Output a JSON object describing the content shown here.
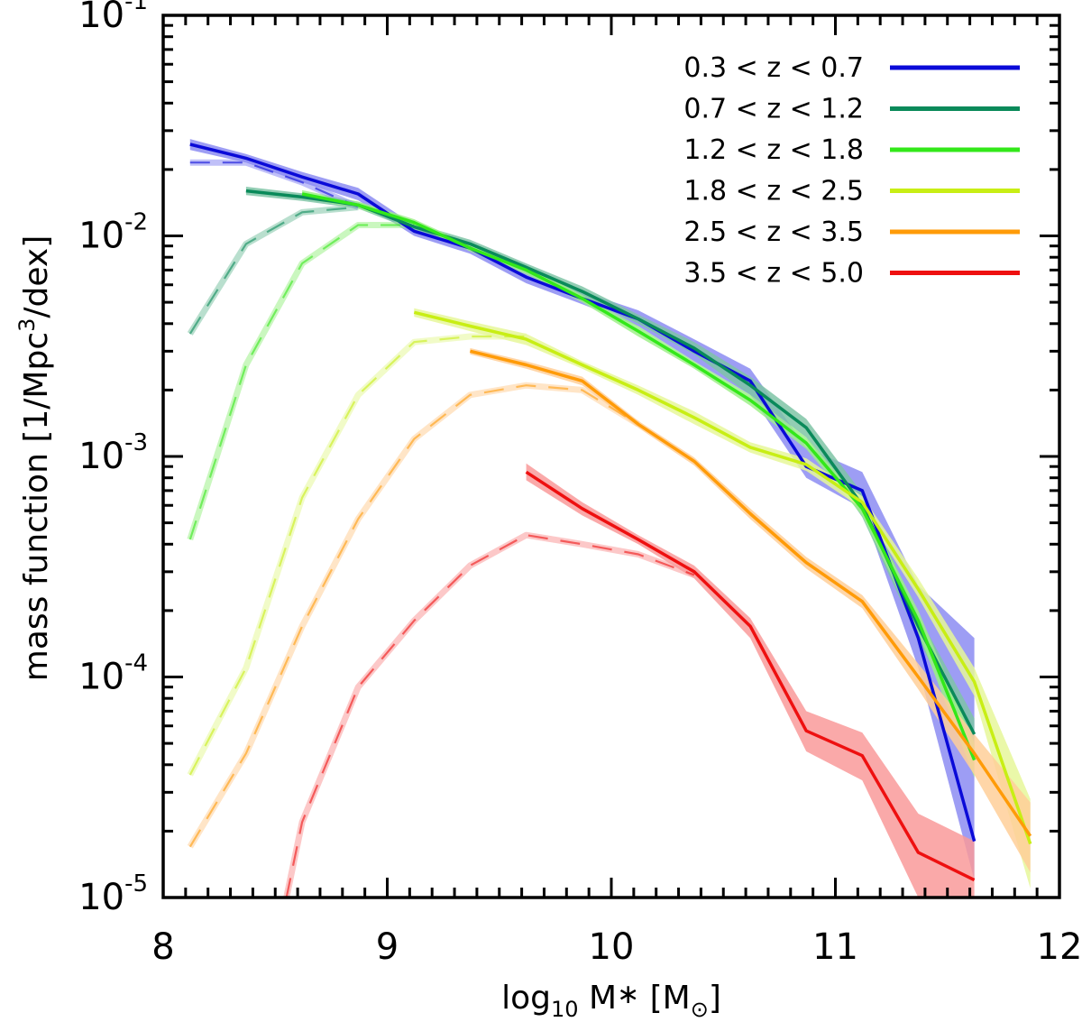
{
  "chart_data": {
    "type": "line",
    "xlabel_parts": {
      "base": "log",
      "sub": "10",
      "mid": " M",
      "star": "∗",
      "open": " [M",
      "sun": "⊙",
      "close": "]"
    },
    "ylabel_parts": {
      "pre": "mass function [1/Mpc",
      "sup": "3",
      "post": "/dex]"
    },
    "xlim": [
      8,
      12
    ],
    "ylim": [
      1e-05,
      0.1
    ],
    "y_scale": "log",
    "x_ticks": [
      {
        "value": 8,
        "label": "8"
      },
      {
        "value": 9,
        "label": "9"
      },
      {
        "value": 10,
        "label": "10"
      },
      {
        "value": 11,
        "label": "11"
      },
      {
        "value": 12,
        "label": "12"
      }
    ],
    "y_ticks": [
      {
        "value": 1e-05,
        "base": "10",
        "exp": "-5"
      },
      {
        "value": 0.0001,
        "base": "10",
        "exp": "-4"
      },
      {
        "value": 0.001,
        "base": "10",
        "exp": "-3"
      },
      {
        "value": 0.01,
        "base": "10",
        "exp": "-2"
      },
      {
        "value": 0.1,
        "base": "10",
        "exp": "-1"
      }
    ],
    "legend_placement": "top-right",
    "series": [
      {
        "name": "0.3 < z < 0.7",
        "color": "#0a0ad8",
        "band_color": "#8c8cf2",
        "x": [
          8.12,
          8.37,
          8.62,
          8.87,
          9.12,
          9.37,
          9.62,
          9.87,
          10.12,
          10.37,
          10.62,
          10.87,
          11.12,
          11.37,
          11.62
        ],
        "y": [
          0.026,
          0.0225,
          0.0185,
          0.0155,
          0.0105,
          0.0088,
          0.0065,
          0.0052,
          0.0042,
          0.003,
          0.0022,
          0.0009,
          0.0007,
          0.00015,
          1.8e-05
        ],
        "lo": [
          0.0245,
          0.0215,
          0.0175,
          0.0145,
          0.01,
          0.0083,
          0.0061,
          0.0049,
          0.0039,
          0.0027,
          0.0019,
          0.0008,
          0.00058,
          0.00011,
          1.2e-05
        ],
        "hi": [
          0.0275,
          0.0235,
          0.0195,
          0.0165,
          0.0112,
          0.0094,
          0.0069,
          0.0056,
          0.0046,
          0.0034,
          0.0025,
          0.0011,
          0.00085,
          0.00026,
          0.00015
        ],
        "incomplete": {
          "x": [
            8.12,
            8.37,
            8.62,
            8.87
          ],
          "y": [
            0.0215,
            0.0215,
            0.0175,
            0.0135
          ]
        }
      },
      {
        "name": "0.7 < z < 1.2",
        "color": "#0a8a5a",
        "band_color": "#7fc4a6",
        "x": [
          8.37,
          8.62,
          8.87,
          9.12,
          9.37,
          9.62,
          9.87,
          10.12,
          10.37,
          10.62,
          10.87,
          11.12,
          11.37,
          11.62
        ],
        "y": [
          0.016,
          0.015,
          0.0138,
          0.011,
          0.0092,
          0.0072,
          0.0056,
          0.0042,
          0.0031,
          0.0021,
          0.00135,
          0.0006,
          0.00017,
          5.5e-05
        ],
        "lo": [
          0.0153,
          0.0144,
          0.0133,
          0.0106,
          0.0088,
          0.0069,
          0.0053,
          0.004,
          0.0029,
          0.0019,
          0.00122,
          0.00053,
          0.00015,
          4.5e-05
        ],
        "hi": [
          0.0167,
          0.0156,
          0.0143,
          0.0114,
          0.0096,
          0.0075,
          0.0059,
          0.0044,
          0.0033,
          0.0023,
          0.00148,
          0.00068,
          0.00019,
          6.5e-05
        ],
        "incomplete": {
          "x": [
            8.12,
            8.37,
            8.62,
            8.87
          ],
          "y": [
            0.0036,
            0.0092,
            0.0128,
            0.0135
          ]
        }
      },
      {
        "name": "1.2 < z < 1.8",
        "color": "#33e81a",
        "band_color": "#9ff08a",
        "x": [
          8.62,
          8.87,
          9.12,
          9.37,
          9.62,
          9.87,
          10.12,
          10.37,
          10.62,
          10.87,
          11.12,
          11.37,
          11.62
        ],
        "y": [
          0.0155,
          0.0138,
          0.0115,
          0.0088,
          0.007,
          0.0052,
          0.0037,
          0.0026,
          0.0018,
          0.00115,
          0.00058,
          0.00018,
          4.2e-05
        ],
        "lo": [
          0.0149,
          0.0133,
          0.0111,
          0.0085,
          0.0067,
          0.005,
          0.0035,
          0.0025,
          0.0017,
          0.00108,
          0.00054,
          0.00016,
          3.5e-05
        ],
        "hi": [
          0.0161,
          0.0143,
          0.0119,
          0.0091,
          0.0073,
          0.0054,
          0.0039,
          0.0027,
          0.0019,
          0.00122,
          0.00062,
          0.0002,
          5e-05
        ],
        "incomplete": {
          "x": [
            8.12,
            8.37,
            8.62,
            8.87,
            9.12
          ],
          "y": [
            0.00042,
            0.0026,
            0.0075,
            0.0112,
            0.0112
          ]
        }
      },
      {
        "name": "1.8 < z < 2.5",
        "color": "#c8ee14",
        "band_color": "#e6f79a",
        "x": [
          9.12,
          9.37,
          9.62,
          9.87,
          10.12,
          10.37,
          10.62,
          10.87,
          11.12,
          11.37,
          11.62,
          11.87
        ],
        "y": [
          0.0045,
          0.0039,
          0.0034,
          0.0026,
          0.002,
          0.0015,
          0.0011,
          0.00092,
          0.00062,
          0.00025,
          9.5e-05,
          1.75e-05
        ],
        "lo": [
          0.0043,
          0.0037,
          0.0032,
          0.0025,
          0.0019,
          0.0014,
          0.00104,
          0.00086,
          0.00058,
          0.00023,
          8.2e-05,
          1.1e-05
        ],
        "hi": [
          0.0047,
          0.0041,
          0.0036,
          0.0027,
          0.0021,
          0.0016,
          0.00116,
          0.00098,
          0.00066,
          0.00028,
          0.00011,
          2.8e-05
        ],
        "incomplete": {
          "x": [
            8.12,
            8.37,
            8.62,
            8.87,
            9.12,
            9.37,
            9.62
          ],
          "y": [
            3.6e-05,
            0.00011,
            0.00065,
            0.0019,
            0.0033,
            0.0035,
            0.0035
          ]
        }
      },
      {
        "name": "2.5 < z < 3.5",
        "color": "#ff9b08",
        "band_color": "#ffcf99",
        "x": [
          9.37,
          9.62,
          9.87,
          10.12,
          10.37,
          10.62,
          10.87,
          11.12,
          11.37,
          11.62,
          11.87
        ],
        "y": [
          0.003,
          0.0026,
          0.0022,
          0.0014,
          0.00095,
          0.00055,
          0.00033,
          0.00022,
          0.0001,
          4.5e-05,
          1.9e-05
        ],
        "lo": [
          0.0029,
          0.0025,
          0.0021,
          0.00135,
          0.00091,
          0.00052,
          0.00031,
          0.000205,
          8.8e-05,
          3.6e-05,
          1.3e-05
        ],
        "hi": [
          0.0031,
          0.0027,
          0.0023,
          0.00145,
          0.00099,
          0.00058,
          0.00035,
          0.000235,
          0.000115,
          5.5e-05,
          2.7e-05
        ],
        "incomplete": {
          "x": [
            8.12,
            8.37,
            8.62,
            8.87,
            9.12,
            9.37,
            9.62,
            9.87,
            10.12
          ],
          "y": [
            1.7e-05,
            4.5e-05,
            0.00017,
            0.00052,
            0.0012,
            0.0019,
            0.0021,
            0.002,
            0.0014
          ]
        }
      },
      {
        "name": "3.5 < z < 5.0",
        "color": "#ee1010",
        "band_color": "#f99a9a",
        "x": [
          9.62,
          9.87,
          10.12,
          10.37,
          10.62,
          10.87,
          11.12,
          11.37,
          11.62
        ],
        "y": [
          0.00085,
          0.00058,
          0.00042,
          0.0003,
          0.00017,
          5.7e-05,
          4.4e-05,
          1.6e-05,
          1.2e-05
        ],
        "lo": [
          0.00078,
          0.00054,
          0.0004,
          0.00028,
          0.00015,
          4.6e-05,
          3.4e-05,
          1e-05,
          1e-05
        ],
        "hi": [
          0.00093,
          0.00062,
          0.00044,
          0.00032,
          0.000185,
          7e-05,
          5.6e-05,
          2.4e-05,
          1.8e-05
        ],
        "incomplete": {
          "x": [
            8.55,
            8.62,
            8.87,
            9.12,
            9.37,
            9.62,
            9.87,
            10.12,
            10.37
          ],
          "y": [
            1e-05,
            2.2e-05,
            9e-05,
            0.00018,
            0.00032,
            0.00044,
            0.0004,
            0.00036,
            0.00029
          ]
        }
      }
    ]
  }
}
